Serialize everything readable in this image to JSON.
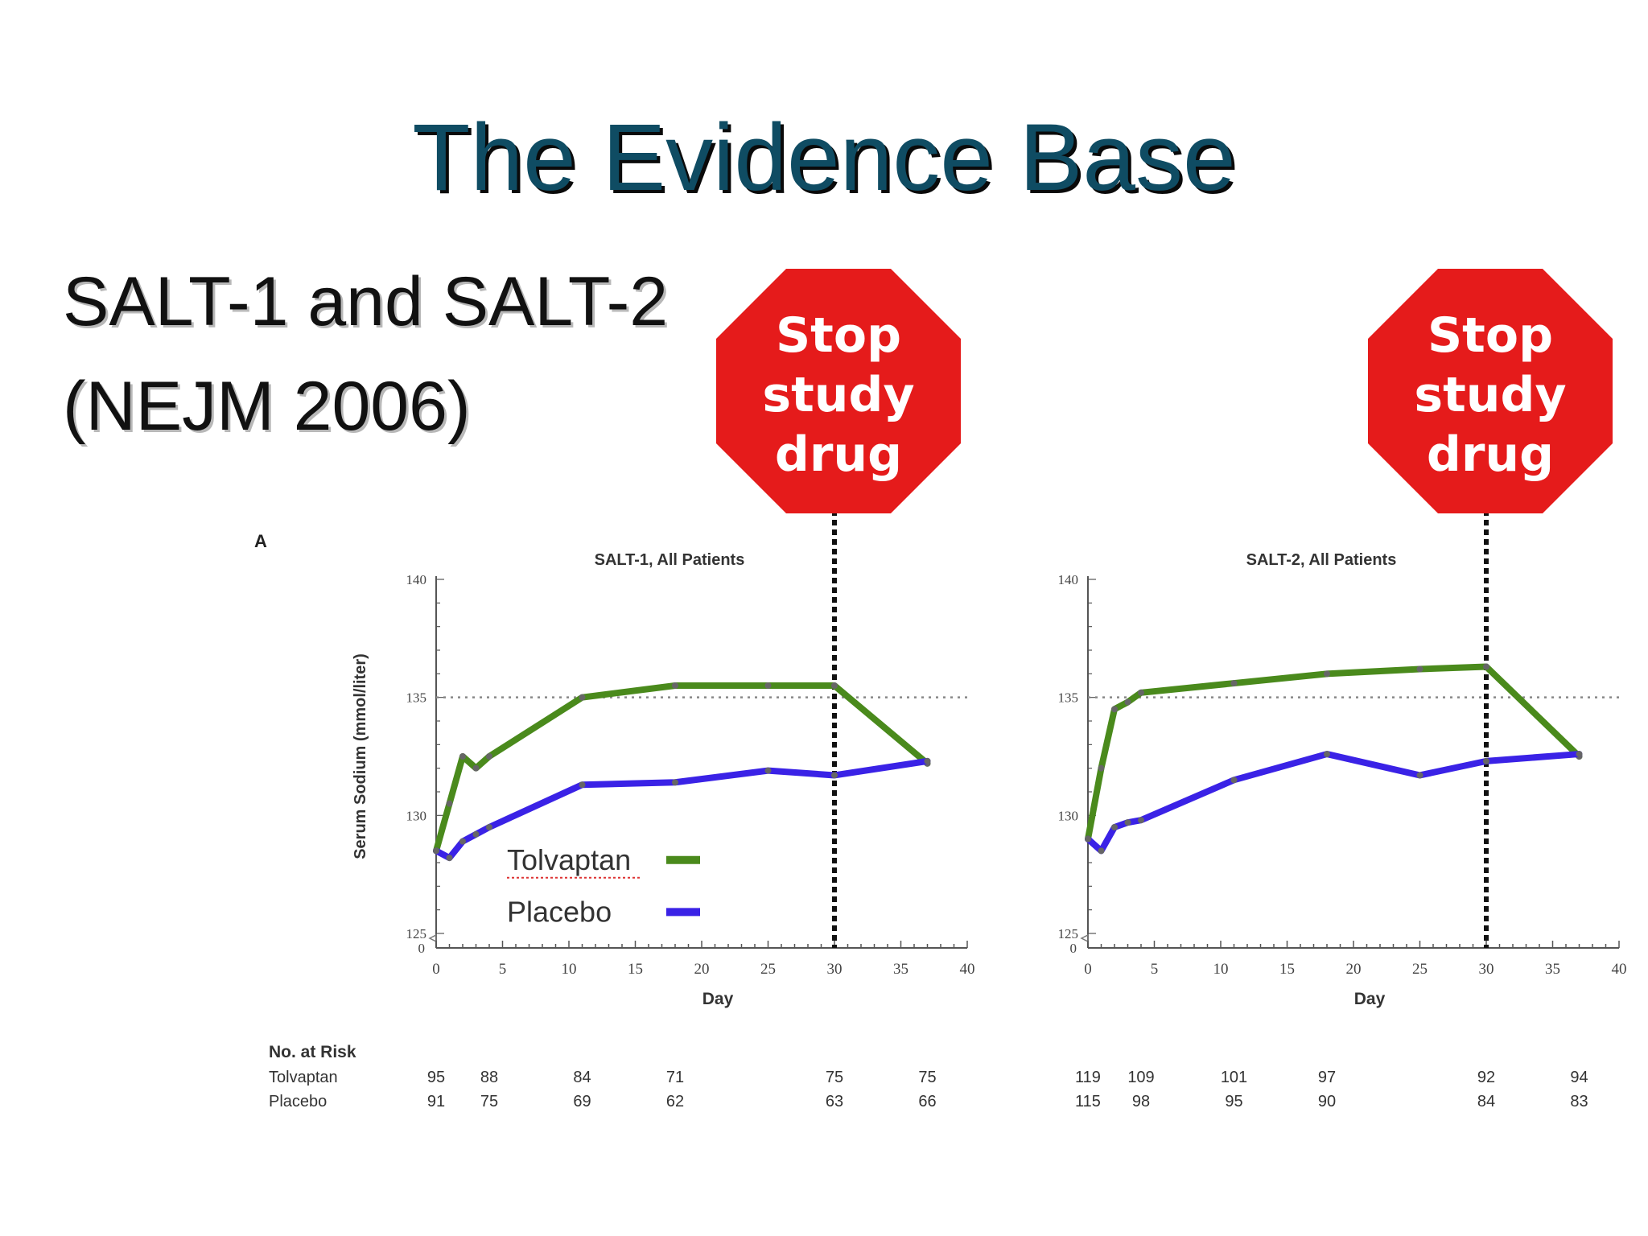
{
  "slide": {
    "title": "The Evidence Base",
    "subtitle_line1": "SALT-1 and SALT-2",
    "subtitle_line2": "(NEJM 2006)",
    "panel_letter": "A",
    "stop_sign": [
      "Stop",
      "study",
      "drug"
    ],
    "colors": {
      "title": "#0f4c63",
      "stop_sign": "#e51b1b",
      "tolvaptan": "#4a8a1c",
      "placebo": "#3a22e6"
    }
  },
  "legend": {
    "tolvaptan": "Tolvaptan",
    "placebo": "Placebo"
  },
  "risk_table": {
    "header": "No. at Risk",
    "rows": [
      "Tolvaptan",
      "Placebo"
    ]
  },
  "chart_data": [
    {
      "type": "line",
      "title": "SALT-1, All Patients",
      "xlabel": "Day",
      "ylabel": "Serum Sodium (mmol/liter)",
      "xlim": [
        0,
        40
      ],
      "ylim": [
        125,
        140
      ],
      "xticks": [
        0,
        5,
        10,
        15,
        20,
        25,
        30,
        35,
        40
      ],
      "yticks": [
        125,
        130,
        135,
        140
      ],
      "reference_line_y": 135,
      "stop_drug_day": 30,
      "series": [
        {
          "name": "Tolvaptan",
          "x": [
            0,
            1,
            2,
            3,
            4,
            11,
            18,
            25,
            30,
            37
          ],
          "y": [
            128.5,
            130.5,
            132.5,
            132.0,
            132.5,
            135.0,
            135.5,
            135.5,
            135.5,
            132.2
          ]
        },
        {
          "name": "Placebo",
          "x": [
            0,
            1,
            2,
            3,
            4,
            11,
            18,
            25,
            30,
            37
          ],
          "y": [
            128.5,
            128.2,
            128.9,
            129.2,
            129.5,
            131.3,
            131.4,
            131.9,
            131.7,
            132.3
          ]
        }
      ],
      "at_risk": {
        "days": [
          0,
          4,
          11,
          18,
          30,
          37
        ],
        "Tolvaptan": [
          "95",
          "88",
          "84",
          "71",
          "75",
          "75"
        ],
        "Placebo": [
          "91",
          "75",
          "69",
          "62",
          "63",
          "66"
        ]
      }
    },
    {
      "type": "line",
      "title": "SALT-2, All Patients",
      "xlabel": "Day",
      "ylabel": "",
      "xlim": [
        0,
        40
      ],
      "ylim": [
        125,
        140
      ],
      "xticks": [
        0,
        5,
        10,
        15,
        20,
        25,
        30,
        35,
        40
      ],
      "yticks": [
        125,
        130,
        135,
        140
      ],
      "reference_line_y": 135,
      "stop_drug_day": 30,
      "series": [
        {
          "name": "Tolvaptan",
          "x": [
            0,
            1,
            2,
            3,
            4,
            11,
            18,
            25,
            30,
            37
          ],
          "y": [
            129.0,
            132.0,
            134.5,
            134.8,
            135.2,
            135.6,
            136.0,
            136.2,
            136.3,
            132.5
          ]
        },
        {
          "name": "Placebo",
          "x": [
            0,
            1,
            2,
            3,
            4,
            11,
            18,
            25,
            30,
            37
          ],
          "y": [
            129.0,
            128.5,
            129.5,
            129.7,
            129.8,
            131.5,
            132.6,
            131.7,
            132.3,
            132.6
          ]
        }
      ],
      "at_risk": {
        "days": [
          0,
          4,
          11,
          18,
          30,
          37
        ],
        "Tolvaptan": [
          "119",
          "109",
          "101",
          "97",
          "92",
          "94"
        ],
        "Placebo": [
          "115",
          "98",
          "95",
          "90",
          "84",
          "83"
        ]
      }
    }
  ]
}
